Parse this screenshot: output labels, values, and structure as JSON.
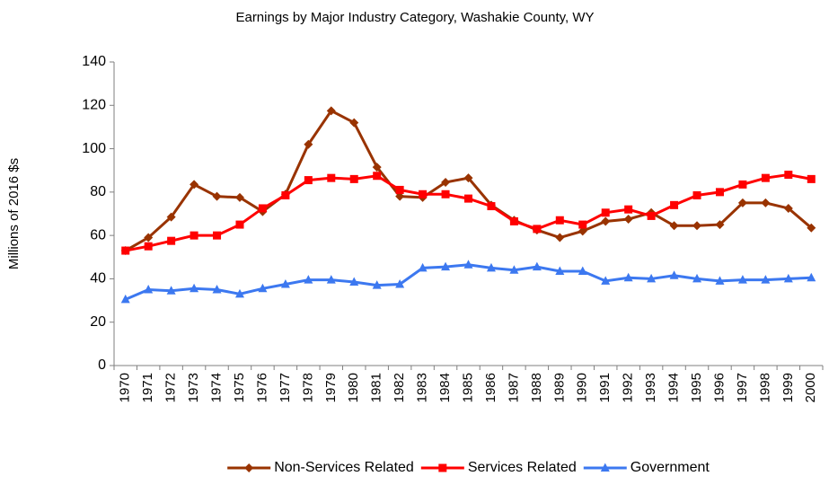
{
  "chart_data": {
    "type": "line",
    "title": "Earnings by Major Industry Category, Washakie County, WY",
    "y_label": "Millions of 2016 $s",
    "categories": [
      "1970",
      "1971",
      "1972",
      "1973",
      "1974",
      "1975",
      "1976",
      "1977",
      "1978",
      "1979",
      "1980",
      "1981",
      "1982",
      "1983",
      "1984",
      "1985",
      "1986",
      "1987",
      "1988",
      "1989",
      "1990",
      "1991",
      "1992",
      "1993",
      "1994",
      "1995",
      "1996",
      "1997",
      "1998",
      "1999",
      "2000"
    ],
    "series": [
      {
        "name": "Non-Services Related",
        "color": "#993300",
        "marker": "diamond",
        "values": [
          53,
          59,
          68.5,
          83.5,
          78,
          77.5,
          71,
          79,
          102,
          117.5,
          112,
          91.5,
          78,
          77.5,
          84.5,
          86.5,
          74,
          67,
          62.5,
          59,
          62,
          66.5,
          67.5,
          70.5,
          64.5,
          64.5,
          65,
          75,
          75,
          72.5,
          63.5
        ]
      },
      {
        "name": "Services Related",
        "color": "#ff0000",
        "marker": "square",
        "values": [
          53,
          55,
          57.5,
          60,
          60,
          65,
          72.5,
          78.5,
          85.5,
          86.5,
          86,
          87.5,
          81,
          79,
          79,
          77,
          73.5,
          66.5,
          63,
          67,
          65,
          70.5,
          72,
          69,
          74,
          78.5,
          80,
          83.5,
          86.5,
          88,
          86
        ]
      },
      {
        "name": "Government",
        "color": "#3c78f0",
        "marker": "triangle",
        "values": [
          30.5,
          35,
          34.5,
          35.5,
          35,
          33,
          35.5,
          37.5,
          39.5,
          39.5,
          38.5,
          37,
          37.5,
          45,
          45.5,
          46.5,
          45,
          44,
          45.5,
          43.5,
          43.5,
          39,
          40.5,
          40,
          41.5,
          40,
          39,
          39.5,
          39.5,
          40,
          40.5
        ]
      }
    ],
    "ylim": [
      0,
      140
    ],
    "yticks": [
      0,
      20,
      40,
      60,
      80,
      100,
      120,
      140
    ],
    "grid": false,
    "legend": "bottom"
  }
}
